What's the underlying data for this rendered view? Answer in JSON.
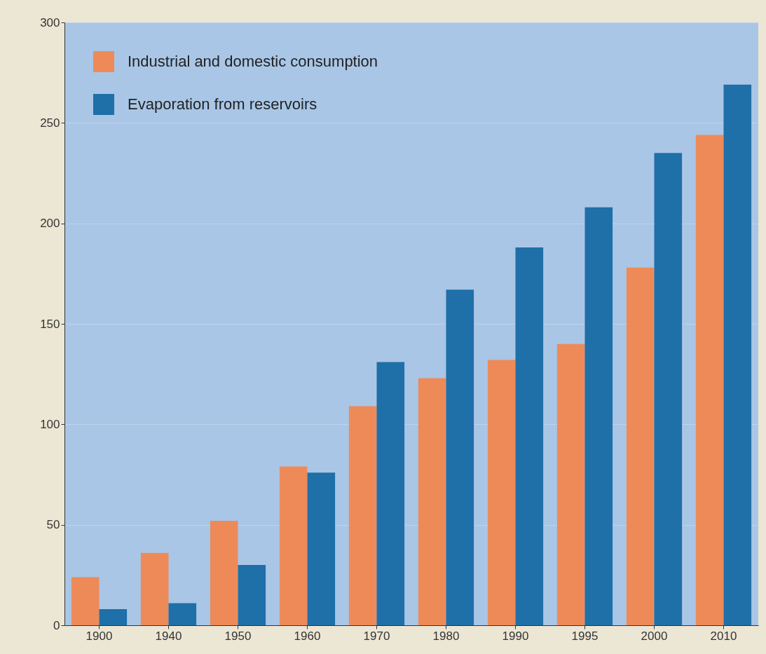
{
  "chart_data": {
    "type": "bar",
    "categories": [
      "1900",
      "1940",
      "1950",
      "1960",
      "1970",
      "1980",
      "1990",
      "1995",
      "2000",
      "2010"
    ],
    "series": [
      {
        "name": "Industrial and domestic consumption",
        "color": "#ee8a58",
        "values": [
          24,
          36,
          52,
          79,
          109,
          123,
          132,
          140,
          178,
          244
        ]
      },
      {
        "name": "Evaporation from reservoirs",
        "color": "#1f6fa8",
        "values": [
          8,
          11,
          30,
          76,
          131,
          167,
          188,
          208,
          235,
          269
        ]
      }
    ],
    "ylim": [
      0,
      300
    ],
    "yticks": [
      0,
      50,
      100,
      150,
      200,
      250,
      300
    ],
    "grid": "y",
    "legend": "top left"
  }
}
